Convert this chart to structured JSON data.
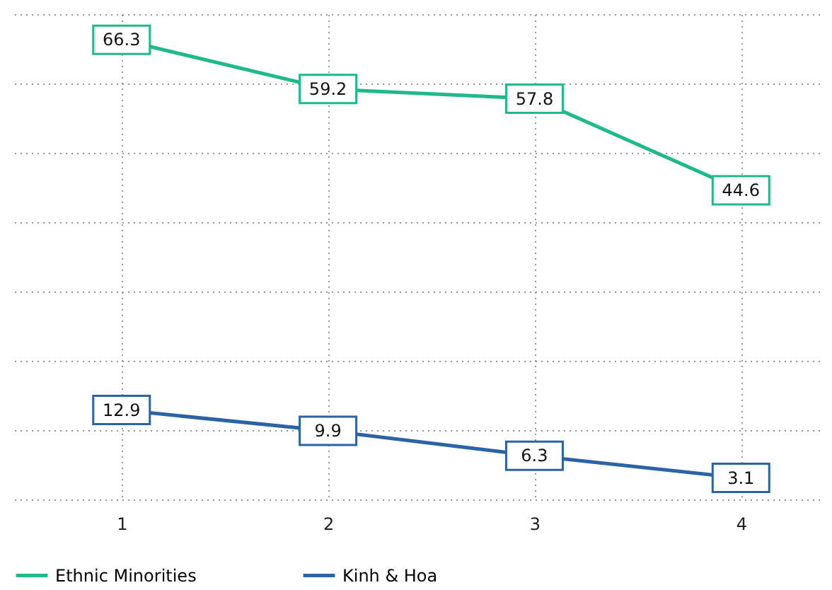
{
  "chart_data": {
    "type": "line",
    "categories": [
      "1",
      "2",
      "3",
      "4"
    ],
    "series": [
      {
        "name": "Ethnic Minorities",
        "color": "#1fb98b",
        "values": [
          66.3,
          59.2,
          57.8,
          44.6
        ]
      },
      {
        "name": "Kinh & Hoa",
        "color": "#2b63a4",
        "values": [
          12.9,
          9.9,
          6.3,
          3.1
        ]
      }
    ],
    "ylim": [
      0,
      70
    ],
    "yticks": [
      {
        "value": 0,
        "label": null
      },
      {
        "value": 10,
        "label": null
      },
      {
        "value": 20,
        "label": null
      },
      {
        "value": 30,
        "label": null
      },
      {
        "value": 40,
        "label": null
      },
      {
        "value": 50,
        "label": null
      },
      {
        "value": 60,
        "label": null
      },
      {
        "value": 70,
        "label": null
      }
    ],
    "tick_labels": "x",
    "grid": true,
    "legend": "bottom",
    "data_labels": true,
    "marker": "square",
    "line_style": "solid"
  }
}
